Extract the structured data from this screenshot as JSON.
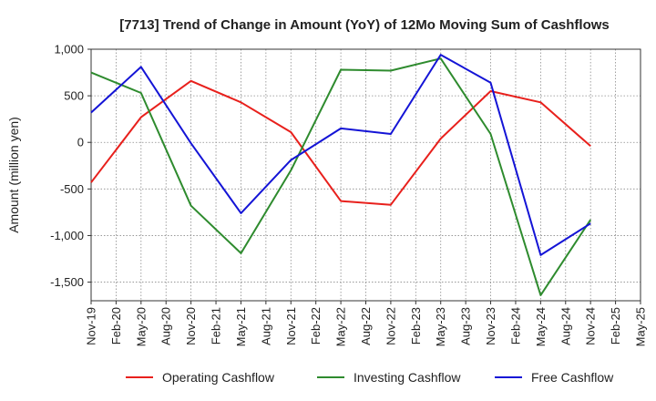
{
  "chart_data": {
    "type": "line",
    "title": "[7713]  Trend of Change in Amount (YoY) of 12Mo Moving Sum of Cashflows",
    "xlabel": "",
    "ylabel": "Amount (million yen)",
    "ylim": [
      -1700,
      1000
    ],
    "yticks": [
      1000,
      500,
      0,
      -500,
      -1000,
      -1500
    ],
    "ytick_labels": [
      "1,000",
      "500",
      "0",
      "-500",
      "-1,000",
      "-1,500"
    ],
    "categories": [
      "Nov-19",
      "Feb-20",
      "May-20",
      "Aug-20",
      "Nov-20",
      "Feb-21",
      "May-21",
      "Aug-21",
      "Nov-21",
      "Feb-22",
      "May-22",
      "Aug-22",
      "Nov-22",
      "Feb-23",
      "May-23",
      "Aug-23",
      "Nov-23",
      "Feb-24",
      "May-24",
      "Aug-24",
      "Nov-24",
      "Feb-25",
      "May-25"
    ],
    "grid": true,
    "legend_position": "bottom",
    "series": [
      {
        "name": "Operating Cashflow",
        "color": "#e8201c",
        "values": [
          -430,
          null,
          270,
          null,
          660,
          null,
          430,
          null,
          110,
          null,
          -630,
          null,
          -670,
          null,
          40,
          null,
          550,
          null,
          430,
          null,
          -40,
          null,
          null
        ]
      },
      {
        "name": "Investing Cashflow",
        "color": "#2e8b2e",
        "values": [
          750,
          null,
          530,
          null,
          -680,
          null,
          -1190,
          null,
          -300,
          null,
          780,
          null,
          770,
          null,
          900,
          null,
          90,
          null,
          -1640,
          null,
          -830,
          null,
          null
        ]
      },
      {
        "name": "Free Cashflow",
        "color": "#1414d6",
        "values": [
          320,
          null,
          810,
          null,
          -10,
          null,
          -760,
          null,
          -190,
          null,
          150,
          null,
          90,
          null,
          940,
          null,
          640,
          null,
          -1210,
          null,
          -870,
          null,
          null
        ]
      }
    ]
  }
}
